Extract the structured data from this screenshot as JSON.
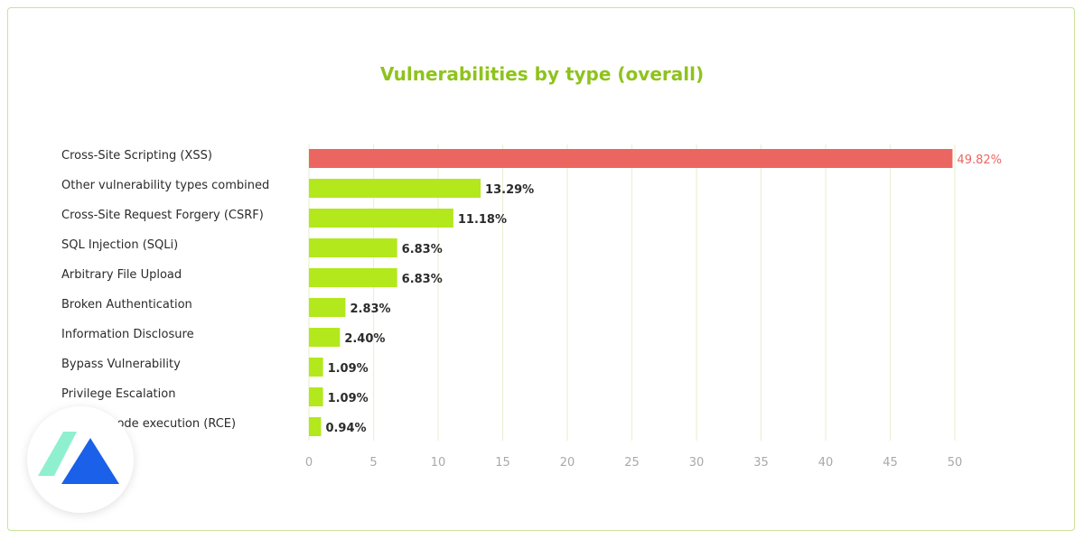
{
  "colors": {
    "highlight": "#ec6661",
    "bar": "#b2e81c",
    "grid": "#e9f1d4",
    "label": "#2b2b2b",
    "tick": "#a9a9a9",
    "title": "#8ec31c",
    "logo_mint": "#8ff0cf",
    "logo_blue": "#1a60e8"
  },
  "chart_data": {
    "type": "bar",
    "orientation": "horizontal",
    "title": "Vulnerabilities by type (overall)",
    "xlabel": "",
    "ylabel": "",
    "xlim": [
      0,
      50
    ],
    "xticks": [
      0,
      5,
      10,
      15,
      20,
      25,
      30,
      35,
      40,
      45,
      50
    ],
    "grid": "vertical",
    "categories": [
      "Cross-Site Scripting (XSS)",
      "Other vulnerability types combined",
      "Cross-Site Request Forgery (CSRF)",
      "SQL Injection (SQLi)",
      "Arbitrary File Upload",
      "Broken Authentication",
      "Information Disclosure",
      "Bypass Vulnerability",
      "Privilege Escalation",
      "Remote code execution (RCE)"
    ],
    "values": [
      49.82,
      13.29,
      11.18,
      6.83,
      6.83,
      2.83,
      2.4,
      1.09,
      1.09,
      0.94
    ],
    "value_labels": [
      "49.82%",
      "13.29%",
      "11.18%",
      "6.83%",
      "6.83%",
      "2.83%",
      "2.40%",
      "1.09%",
      "1.09%",
      "0.94%"
    ],
    "highlight_index": 0
  }
}
